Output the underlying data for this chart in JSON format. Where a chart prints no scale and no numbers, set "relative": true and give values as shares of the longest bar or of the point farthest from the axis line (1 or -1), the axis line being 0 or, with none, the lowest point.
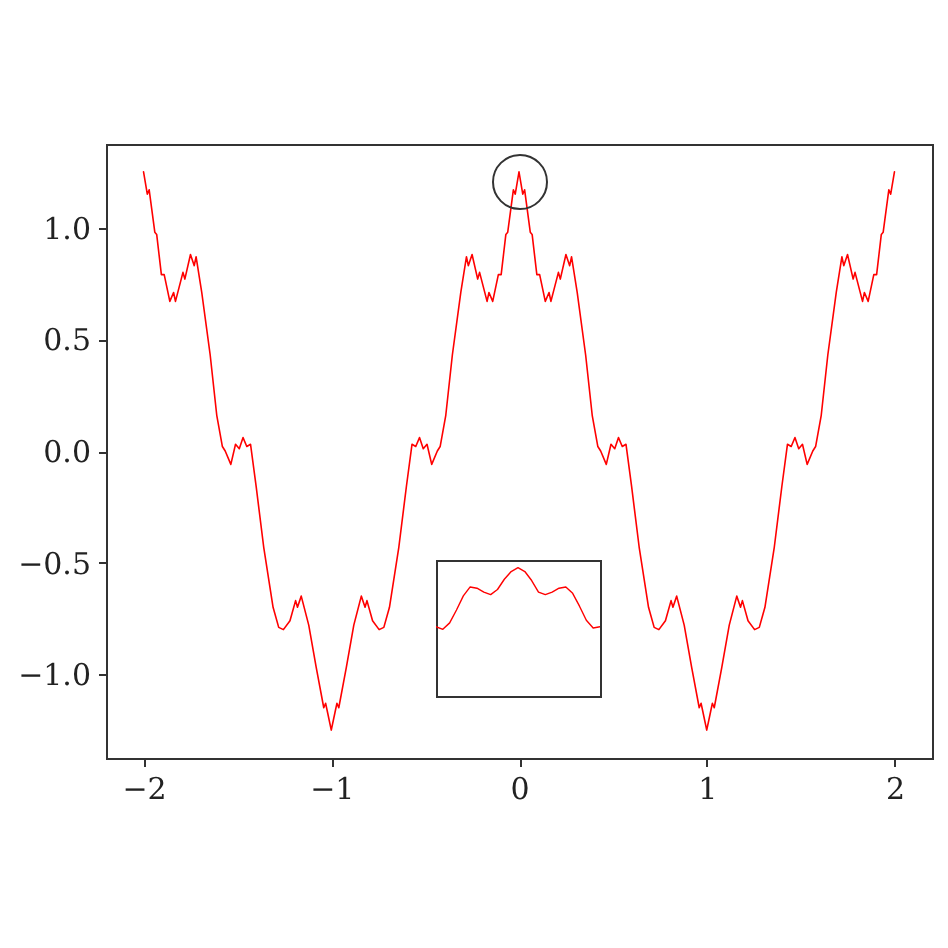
{
  "chart_data": [
    {
      "type": "line",
      "xlim": [
        -2.2,
        2.2
      ],
      "ylim": [
        -1.375,
        1.375
      ],
      "xticks": [
        -2,
        -1,
        0,
        1,
        2
      ],
      "yticks": [
        {
          "value": -1,
          "label": "−1.0"
        },
        {
          "value": -0.5,
          "label": "−0.5"
        },
        {
          "value": 0,
          "label": "0.0"
        },
        {
          "value": 0.5,
          "label": "0.5"
        },
        {
          "value": 1,
          "label": "1.0"
        }
      ],
      "x": [
        -2,
        -1.98,
        -1.97,
        -1.94,
        -1.93,
        -1.905,
        -1.89,
        -1.86,
        -1.84,
        -1.83,
        -1.79,
        -1.78,
        -1.75,
        -1.73,
        -1.72,
        -1.69,
        -1.645,
        -1.61,
        -1.58,
        -1.565,
        -1.535,
        -1.51,
        -1.49,
        -1.47,
        -1.45,
        -1.43,
        -1.4,
        -1.36,
        -1.31,
        -1.28,
        -1.255,
        -1.22,
        -1.19,
        -1.18,
        -1.16,
        -1.12,
        -1.08,
        -1.04,
        -1.03,
        -1.02,
        -1,
        -0.98,
        -0.97,
        -0.96,
        -0.92,
        -0.88,
        -0.84,
        -0.82,
        -0.81,
        -0.78,
        -0.745,
        -0.72,
        -0.69,
        -0.64,
        -0.6,
        -0.57,
        -0.55,
        -0.53,
        -0.51,
        -0.49,
        -0.465,
        -0.435,
        -0.42,
        -0.39,
        -0.355,
        -0.31,
        -0.28,
        -0.27,
        -0.25,
        -0.22,
        -0.21,
        -0.17,
        -0.16,
        -0.14,
        -0.11,
        -0.095,
        -0.07,
        -0.06,
        -0.03,
        -0.02,
        0,
        0.02,
        0.03,
        0.06,
        0.07,
        0.095,
        0.11,
        0.14,
        0.16,
        0.17,
        0.21,
        0.22,
        0.25,
        0.27,
        0.28,
        0.31,
        0.355,
        0.39,
        0.42,
        0.435,
        0.465,
        0.49,
        0.51,
        0.53,
        0.55,
        0.57,
        0.6,
        0.64,
        0.69,
        0.72,
        0.745,
        0.78,
        0.81,
        0.82,
        0.84,
        0.88,
        0.92,
        0.96,
        0.97,
        0.98,
        1,
        1.02,
        1.03,
        1.04,
        1.08,
        1.12,
        1.16,
        1.18,
        1.19,
        1.22,
        1.255,
        1.28,
        1.31,
        1.36,
        1.4,
        1.43,
        1.45,
        1.47,
        1.49,
        1.51,
        1.535,
        1.565,
        1.58,
        1.61,
        1.645,
        1.69,
        1.72,
        1.73,
        1.75,
        1.78,
        1.79,
        1.83,
        1.84,
        1.86,
        1.89,
        1.905,
        1.93,
        1.94,
        1.97,
        1.98,
        2
      ],
      "series": [
        {
          "color": "#ff0000",
          "values": [
            1.25,
            1.15,
            1.17,
            0.98,
            0.97,
            0.79,
            0.79,
            0.67,
            0.71,
            0.67,
            0.8,
            0.77,
            0.88,
            0.83,
            0.87,
            0.71,
            0.43,
            0.16,
            0.02,
            0,
            -0.06,
            0.03,
            0.01,
            0.06,
            0.02,
            0.03,
            -0.16,
            -0.43,
            -0.7,
            -0.79,
            -0.8,
            -0.76,
            -0.67,
            -0.7,
            -0.65,
            -0.78,
            -0.97,
            -1.15,
            -1.13,
            -1.17,
            -1.25,
            -1.17,
            -1.13,
            -1.15,
            -0.97,
            -0.78,
            -0.65,
            -0.7,
            -0.67,
            -0.76,
            -0.8,
            -0.79,
            -0.7,
            -0.43,
            -0.16,
            0.03,
            0.02,
            0.06,
            0.01,
            0.03,
            -0.06,
            0,
            0.02,
            0.16,
            0.43,
            0.71,
            0.87,
            0.83,
            0.88,
            0.77,
            0.8,
            0.67,
            0.71,
            0.67,
            0.79,
            0.79,
            0.97,
            0.98,
            1.17,
            1.15,
            1.25,
            1.15,
            1.17,
            0.98,
            0.97,
            0.79,
            0.79,
            0.67,
            0.71,
            0.67,
            0.8,
            0.77,
            0.88,
            0.83,
            0.87,
            0.71,
            0.43,
            0.16,
            0.02,
            0,
            -0.06,
            0.03,
            0.01,
            0.06,
            0.02,
            0.03,
            -0.16,
            -0.43,
            -0.7,
            -0.79,
            -0.8,
            -0.76,
            -0.67,
            -0.7,
            -0.65,
            -0.78,
            -0.97,
            -1.15,
            -1.13,
            -1.17,
            -1.25,
            -1.17,
            -1.13,
            -1.15,
            -0.97,
            -0.78,
            -0.65,
            -0.7,
            -0.67,
            -0.76,
            -0.8,
            -0.79,
            -0.7,
            -0.43,
            -0.16,
            0.03,
            0.02,
            0.06,
            0.01,
            0.03,
            -0.06,
            0,
            0.02,
            0.16,
            0.43,
            0.71,
            0.87,
            0.83,
            0.88,
            0.77,
            0.8,
            0.67,
            0.71,
            0.67,
            0.79,
            0.79,
            0.97,
            0.98,
            1.17,
            1.15,
            1.25
          ]
        }
      ]
    },
    {
      "type": "line",
      "relative": true,
      "categories": [
        null,
        null,
        null,
        null,
        null,
        null,
        null,
        null,
        null,
        null,
        null,
        null,
        null,
        null,
        null,
        null,
        null,
        null,
        null,
        null,
        null,
        null,
        null,
        null,
        null
      ],
      "series": [
        {
          "color": "#ff0000",
          "values": [
            0.54,
            0.52,
            0.57,
            0.67,
            0.78,
            0.85,
            0.84,
            0.81,
            0.79,
            0.83,
            0.91,
            0.97,
            1,
            0.97,
            0.9,
            0.81,
            0.79,
            0.81,
            0.84,
            0.85,
            0.8,
            0.7,
            0.59,
            0.53,
            0.54
          ]
        }
      ]
    }
  ]
}
